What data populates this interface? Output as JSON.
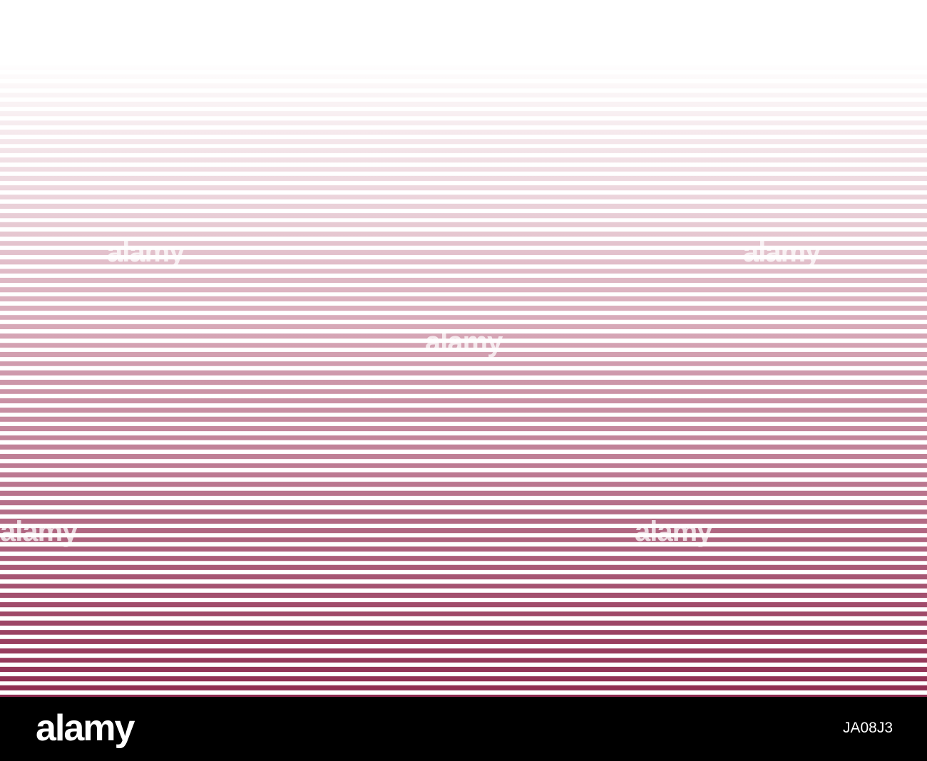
{
  "watermark": "alamy",
  "footer": {
    "logo": "alamy",
    "image_id": "JA08J3"
  }
}
